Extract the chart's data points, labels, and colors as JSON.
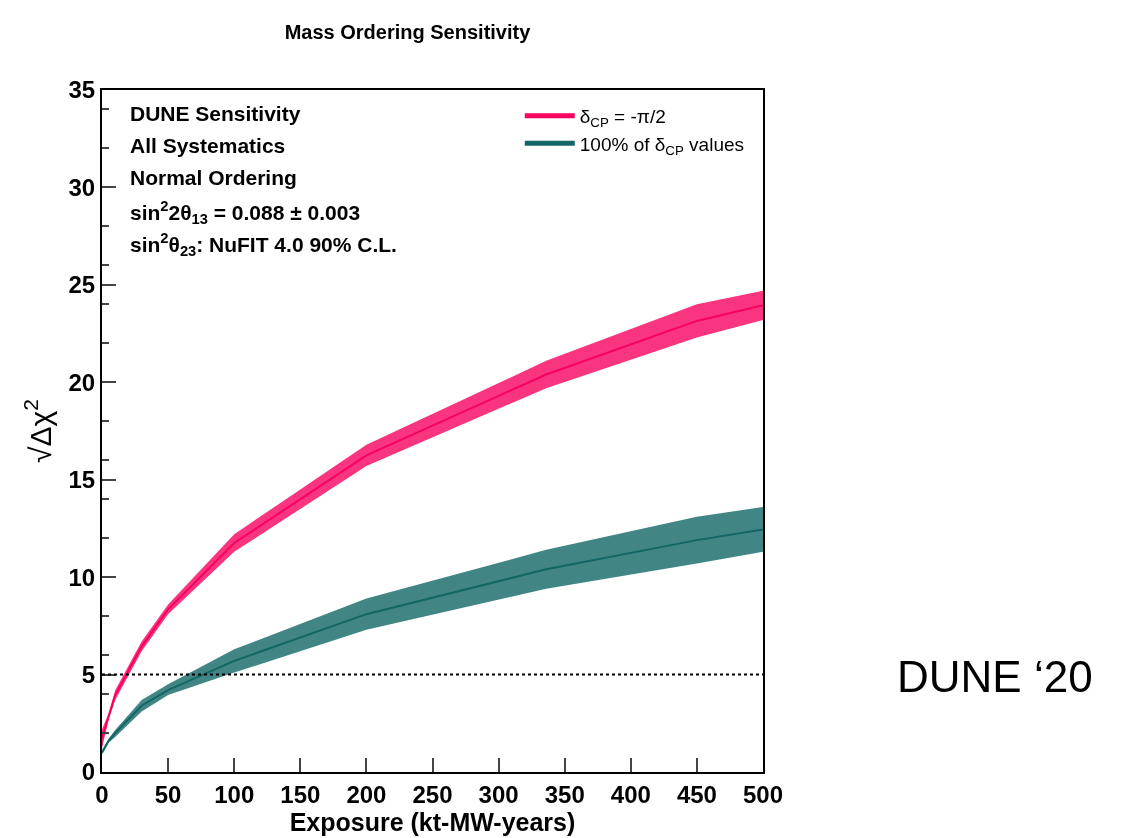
{
  "chart_data": {
    "type": "line",
    "title": "Mass Ordering Sensitivity",
    "xlabel": "Exposure (kt-MW-years)",
    "ylabel": "√Δχ$^{2}$",
    "x": [
      0,
      5,
      10,
      30,
      50,
      100,
      200,
      336,
      450,
      500
    ],
    "series": [
      {
        "name": "δ$_{CP}$ = -π/2",
        "color": "#f7025f",
        "values": [
          1.7,
          2.85,
          3.95,
          6.45,
          8.35,
          11.75,
          16.25,
          20.4,
          23.15,
          23.95
        ],
        "upper": [
          2.2,
          3.0,
          4.2,
          6.7,
          8.6,
          12.2,
          16.8,
          21.1,
          24.0,
          24.7
        ],
        "lower": [
          1.2,
          2.7,
          3.7,
          6.2,
          8.1,
          11.3,
          15.7,
          19.7,
          22.3,
          23.2
        ]
      },
      {
        "name": "100% of δ$_{CP}$ values",
        "color": "#136666",
        "values": [
          1.0,
          1.6,
          2.0,
          3.4,
          4.2,
          5.7,
          8.1,
          10.4,
          11.9,
          12.45
        ],
        "upper": [
          1.1,
          1.7,
          2.15,
          3.7,
          4.5,
          6.3,
          8.9,
          11.4,
          13.1,
          13.6
        ],
        "lower": [
          0.9,
          1.5,
          1.8,
          3.1,
          3.95,
          5.1,
          7.3,
          9.4,
          10.7,
          11.3
        ]
      }
    ],
    "xlim": [
      0,
      500
    ],
    "xticks": [
      0,
      50,
      100,
      150,
      200,
      250,
      300,
      350,
      400,
      450,
      500
    ],
    "ylim": [
      0,
      35
    ],
    "yticks": [
      0,
      5,
      10,
      15,
      20,
      25,
      30,
      35
    ],
    "ref_lines": [
      {
        "axis": "y",
        "value": 5,
        "color": "#000000",
        "line_style": "dotted"
      }
    ],
    "legend": "top right",
    "annotations": [
      "DUNE Sensitivity",
      "All Systematics",
      "Normal Ordering",
      "sin$^{2}$2θ$_{13}$ = 0.088 ± 0.003",
      "sin$^{2}$θ$_{23}$: NuFIT 4.0 90% C.L.",
      "DUNE ‘20"
    ]
  }
}
